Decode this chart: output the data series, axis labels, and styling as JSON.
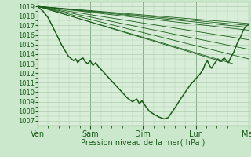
{
  "bg_color": "#cce8cc",
  "plot_bg_color": "#d8eed8",
  "grid_color": "#b0ccb0",
  "line_color": "#1a5c1a",
  "ylabel_text": "Pression niveau de la mer( hPa )",
  "xtick_labels": [
    "Ven",
    "Sam",
    "Dim",
    "Lun",
    "Mar"
  ],
  "xlim": [
    0,
    4.0
  ],
  "ylim": [
    1006.5,
    1019.5
  ],
  "xtick_positions": [
    0,
    1,
    2,
    3,
    4
  ],
  "ytick_positions": [
    1007,
    1008,
    1009,
    1010,
    1011,
    1012,
    1013,
    1014,
    1015,
    1016,
    1017,
    1018,
    1019
  ],
  "forecast_lines": [
    [
      0.0,
      1019.0,
      4.0,
      1017.2
    ],
    [
      0.0,
      1019.0,
      4.0,
      1017.0
    ],
    [
      0.0,
      1019.0,
      4.0,
      1016.8
    ],
    [
      0.0,
      1019.0,
      4.0,
      1016.5
    ],
    [
      0.0,
      1019.0,
      4.0,
      1015.5
    ],
    [
      0.0,
      1019.0,
      4.0,
      1014.5
    ],
    [
      0.0,
      1019.0,
      4.0,
      1013.5
    ],
    [
      0.0,
      1019.0,
      3.7,
      1013.0
    ],
    [
      0.0,
      1019.0,
      3.5,
      1013.2
    ]
  ],
  "main_trace_anchors": [
    [
      0.0,
      1019.0
    ],
    [
      0.1,
      1018.5
    ],
    [
      0.2,
      1017.8
    ],
    [
      0.32,
      1016.5
    ],
    [
      0.45,
      1015.0
    ],
    [
      0.58,
      1013.8
    ],
    [
      0.68,
      1013.3
    ],
    [
      0.72,
      1013.5
    ],
    [
      0.76,
      1013.1
    ],
    [
      0.8,
      1013.4
    ],
    [
      0.86,
      1013.6
    ],
    [
      0.9,
      1013.2
    ],
    [
      0.95,
      1013.0
    ],
    [
      1.0,
      1013.3
    ],
    [
      1.05,
      1012.8
    ],
    [
      1.1,
      1013.1
    ],
    [
      1.15,
      1012.7
    ],
    [
      1.22,
      1012.3
    ],
    [
      1.3,
      1011.8
    ],
    [
      1.4,
      1011.2
    ],
    [
      1.5,
      1010.6
    ],
    [
      1.6,
      1010.0
    ],
    [
      1.7,
      1009.4
    ],
    [
      1.8,
      1009.0
    ],
    [
      1.88,
      1009.3
    ],
    [
      1.93,
      1008.8
    ],
    [
      1.98,
      1009.1
    ],
    [
      2.05,
      1008.5
    ],
    [
      2.12,
      1008.0
    ],
    [
      2.2,
      1007.7
    ],
    [
      2.3,
      1007.4
    ],
    [
      2.4,
      1007.2
    ],
    [
      2.48,
      1007.35
    ],
    [
      2.52,
      1007.7
    ],
    [
      2.6,
      1008.3
    ],
    [
      2.7,
      1009.2
    ],
    [
      2.8,
      1010.0
    ],
    [
      2.9,
      1010.8
    ],
    [
      3.0,
      1011.4
    ],
    [
      3.08,
      1011.9
    ],
    [
      3.14,
      1012.4
    ],
    [
      3.18,
      1013.0
    ],
    [
      3.22,
      1013.3
    ],
    [
      3.26,
      1012.8
    ],
    [
      3.3,
      1012.5
    ],
    [
      3.34,
      1012.9
    ],
    [
      3.38,
      1013.2
    ],
    [
      3.42,
      1013.5
    ],
    [
      3.46,
      1013.2
    ],
    [
      3.5,
      1013.4
    ],
    [
      3.54,
      1013.6
    ],
    [
      3.58,
      1013.3
    ],
    [
      3.62,
      1013.1
    ],
    [
      3.65,
      1013.5
    ],
    [
      3.68,
      1013.8
    ],
    [
      3.72,
      1014.2
    ],
    [
      3.76,
      1014.8
    ],
    [
      3.8,
      1015.3
    ],
    [
      3.85,
      1015.8
    ],
    [
      3.9,
      1016.5
    ],
    [
      3.95,
      1016.9
    ],
    [
      4.0,
      1017.1
    ]
  ]
}
